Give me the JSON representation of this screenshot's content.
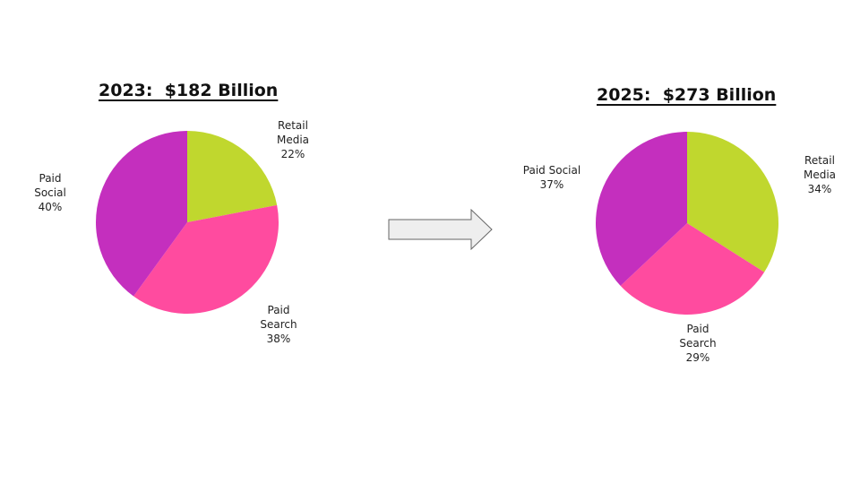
{
  "chart_data": [
    {
      "type": "pie",
      "title": "2023:  $182 Billion",
      "slices": [
        {
          "label": [
            "Retail",
            "Media"
          ],
          "value": 22,
          "value_text": "22%",
          "color": "#c0d72e"
        },
        {
          "label": [
            "Paid",
            "Search"
          ],
          "value": 38,
          "value_text": "38%",
          "color": "#ff4b9f"
        },
        {
          "label": [
            "Paid",
            "Social"
          ],
          "value": 40,
          "value_text": "40%",
          "color": "#c42fbe"
        }
      ]
    },
    {
      "type": "pie",
      "title": "2025:  $273 Billion",
      "slices": [
        {
          "label": [
            "Retail",
            "Media"
          ],
          "value": 34,
          "value_text": "34%",
          "color": "#c0d72e"
        },
        {
          "label": [
            "Paid",
            "Search"
          ],
          "value": 29,
          "value_text": "29%",
          "color": "#ff4b9f"
        },
        {
          "label": [
            "Paid Social"
          ],
          "value": 37,
          "value_text": "37%",
          "color": "#c42fbe"
        }
      ]
    }
  ],
  "arrow": {
    "icon": "right-arrow-icon",
    "fill": "#eeeeee",
    "stroke": "#666666"
  }
}
